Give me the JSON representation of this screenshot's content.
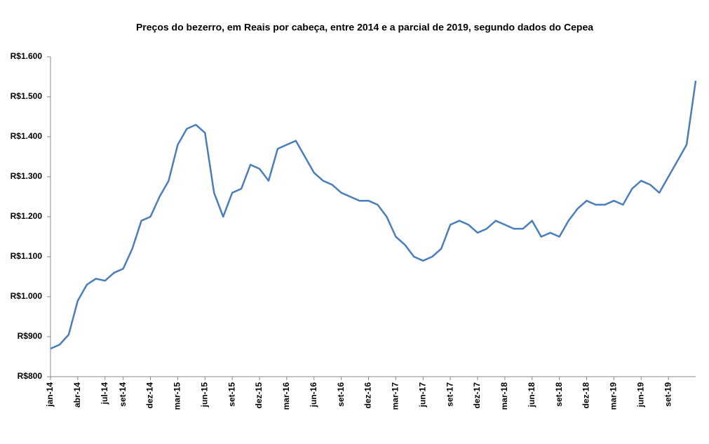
{
  "chart_data": {
    "type": "line",
    "title": "Preços do bezerro, em Reais por cabeça, entre 2014 e a parcial de 2019, segundo dados do Cepea",
    "categories": [
      "jan-14",
      null,
      null,
      "abr-14",
      null,
      null,
      "jul-14",
      null,
      "set-14",
      null,
      null,
      "dez-14",
      null,
      null,
      "mar-15",
      null,
      null,
      "jun-15",
      null,
      null,
      "set-15",
      null,
      null,
      "dez-15",
      null,
      null,
      "mar-16",
      null,
      null,
      "jun-16",
      null,
      null,
      "set-16",
      null,
      null,
      "dez-16",
      null,
      null,
      "mar-17",
      null,
      null,
      "jun-17",
      null,
      null,
      "set-17",
      null,
      null,
      "dez-17",
      null,
      null,
      "mar-18",
      null,
      null,
      "jun-18",
      null,
      null,
      "set-18",
      null,
      null,
      "dez-18",
      null,
      null,
      "mar-19",
      null,
      null,
      "jun-19",
      null,
      null,
      "set-19",
      null,
      null,
      null
    ],
    "series": [
      {
        "name": "Preço do bezerro",
        "color": "#4a7ebb",
        "values": [
          870,
          880,
          905,
          990,
          1030,
          1045,
          1040,
          1060,
          1070,
          1120,
          1190,
          1200,
          1250,
          1290,
          1380,
          1420,
          1430,
          1410,
          1260,
          1200,
          1260,
          1270,
          1330,
          1320,
          1290,
          1370,
          1380,
          1390,
          1350,
          1310,
          1290,
          1280,
          1260,
          1250,
          1240,
          1240,
          1230,
          1200,
          1150,
          1130,
          1100,
          1090,
          1100,
          1120,
          1180,
          1190,
          1180,
          1160,
          1170,
          1190,
          1180,
          1170,
          1170,
          1190,
          1150,
          1160,
          1150,
          1190,
          1220,
          1240,
          1230,
          1230,
          1240,
          1230,
          1270,
          1290,
          1280,
          1260,
          1300,
          1340,
          1380,
          1540
        ]
      }
    ],
    "ylim": [
      800,
      1600
    ],
    "yticks": [
      {
        "value": 800,
        "label": "R$800"
      },
      {
        "value": 900,
        "label": "R$900"
      },
      {
        "value": 1000,
        "label": "R$1.000"
      },
      {
        "value": 1100,
        "label": "R$1.100"
      },
      {
        "value": 1200,
        "label": "R$1.200"
      },
      {
        "value": 1300,
        "label": "R$1.300"
      },
      {
        "value": 1400,
        "label": "R$1.400"
      },
      {
        "value": 1500,
        "label": "R$1.500"
      },
      {
        "value": 1600,
        "label": "R$1.600"
      }
    ],
    "grid": false
  }
}
